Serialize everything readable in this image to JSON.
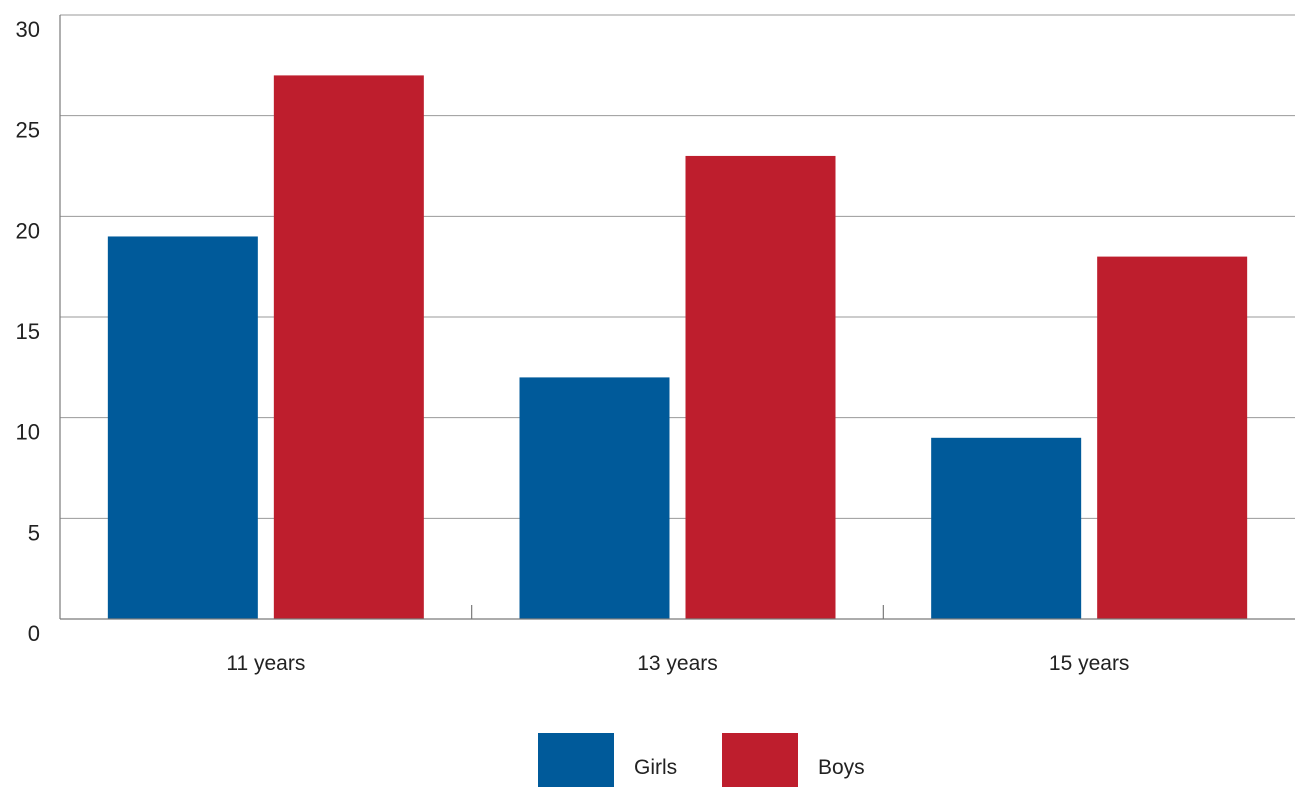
{
  "chart_data": {
    "type": "bar",
    "title": "",
    "xlabel": "",
    "ylabel": "",
    "categories": [
      "11 years",
      "13 years",
      "15 years"
    ],
    "series": [
      {
        "name": "Girls",
        "color": "#005a9a",
        "values": [
          19,
          12,
          9
        ]
      },
      {
        "name": "Boys",
        "color": "#be1e2d",
        "values": [
          27,
          23,
          18
        ]
      }
    ],
    "ylim": [
      0,
      30
    ],
    "yticks": [
      0,
      5,
      10,
      15,
      20,
      25,
      30
    ],
    "grid": true,
    "legend": "bottom-center"
  }
}
